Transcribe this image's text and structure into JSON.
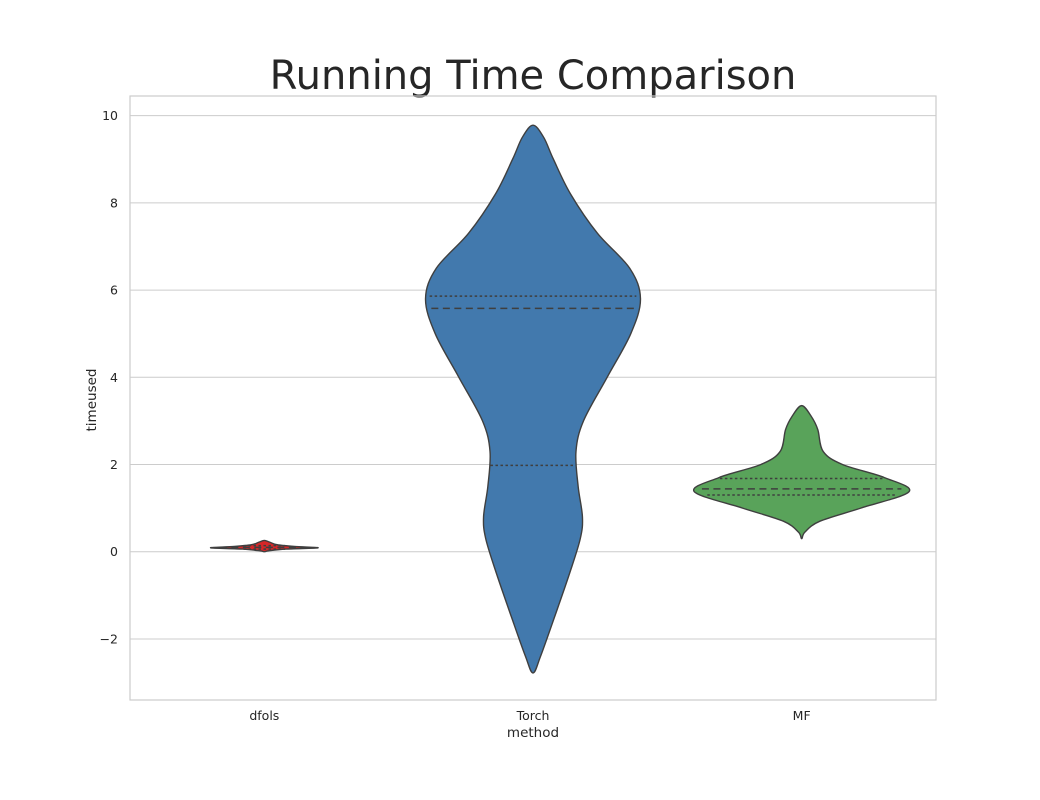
{
  "chart_data": {
    "type": "violin",
    "title": "Running Time Comparison",
    "xlabel": "method",
    "ylabel": "timeused",
    "categories": [
      "dfols",
      "Torch",
      "MF"
    ],
    "ylim": [
      -3.4,
      10.45
    ],
    "yticks": [
      -2,
      0,
      2,
      4,
      6,
      8,
      10
    ],
    "ytick_labels": [
      "−2",
      "0",
      "2",
      "4",
      "6",
      "8",
      "10"
    ],
    "grid": "horizontal",
    "inner": "quartiles",
    "colors": [
      "#d62728",
      "#4279ad",
      "#59a35a"
    ],
    "violins": [
      {
        "name": "dfols",
        "quartiles": [
          0.06,
          0.1,
          0.14
        ],
        "profile": [
          [
            0.0,
            0.0
          ],
          [
            0.02,
            0.04
          ],
          [
            0.06,
            0.2
          ],
          [
            0.09,
            0.5
          ],
          [
            0.12,
            0.28
          ],
          [
            0.16,
            0.12
          ],
          [
            0.22,
            0.05
          ],
          [
            0.26,
            0.0
          ]
        ]
      },
      {
        "name": "Torch",
        "quartiles": [
          1.98,
          5.58,
          5.86
        ],
        "profile": [
          [
            -2.78,
            0.0
          ],
          [
            -2.4,
            0.07
          ],
          [
            -1.5,
            0.2
          ],
          [
            -0.5,
            0.34
          ],
          [
            0.3,
            0.44
          ],
          [
            0.8,
            0.46
          ],
          [
            1.5,
            0.42
          ],
          [
            2.3,
            0.4
          ],
          [
            3.0,
            0.47
          ],
          [
            4.0,
            0.69
          ],
          [
            5.0,
            0.91
          ],
          [
            5.8,
            1.0
          ],
          [
            6.5,
            0.9
          ],
          [
            7.3,
            0.6
          ],
          [
            8.2,
            0.35
          ],
          [
            9.0,
            0.19
          ],
          [
            9.5,
            0.1
          ],
          [
            9.78,
            0.0
          ]
        ]
      },
      {
        "name": "MF",
        "quartiles": [
          1.3,
          1.44,
          1.68
        ],
        "profile": [
          [
            0.3,
            0.0
          ],
          [
            0.45,
            0.03
          ],
          [
            0.7,
            0.17
          ],
          [
            1.0,
            0.55
          ],
          [
            1.38,
            1.0
          ],
          [
            1.7,
            0.77
          ],
          [
            2.0,
            0.38
          ],
          [
            2.3,
            0.2
          ],
          [
            2.8,
            0.15
          ],
          [
            3.1,
            0.09
          ],
          [
            3.35,
            0.0
          ]
        ]
      }
    ]
  }
}
